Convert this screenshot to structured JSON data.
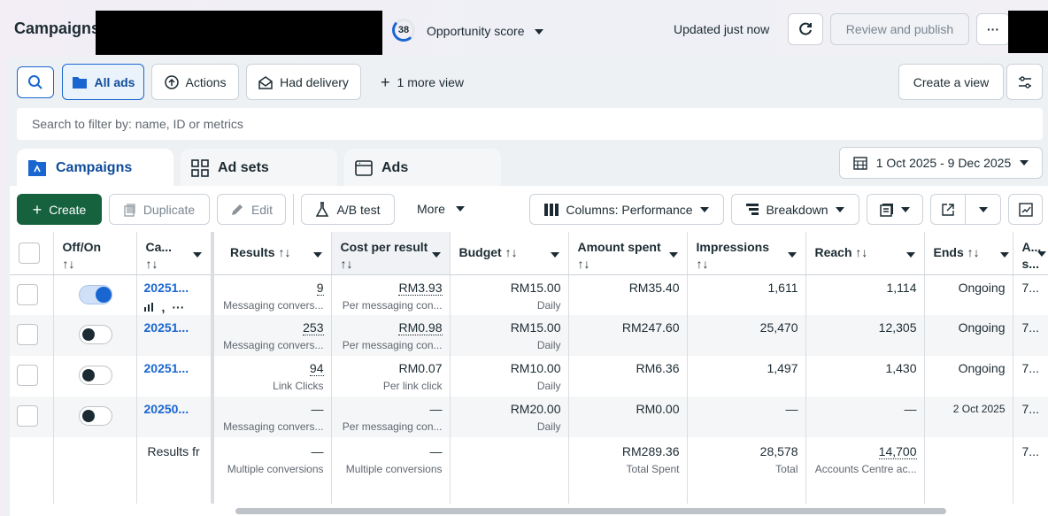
{
  "header": {
    "title": "Campaigns",
    "score": "38",
    "opportunity_label": "Opportunity score",
    "updated": "Updated just now",
    "review_publish": "Review and publish",
    "more": "···"
  },
  "toolbar": {
    "all_ads": "All ads",
    "actions": "Actions",
    "had_delivery": "Had delivery",
    "more_view": "1 more view",
    "create_view": "Create a view"
  },
  "search": {
    "placeholder": "Search to filter by: name, ID or metrics"
  },
  "tabs": [
    {
      "label": "Campaigns"
    },
    {
      "label": "Ad sets"
    },
    {
      "label": "Ads"
    }
  ],
  "date_range": "1 Oct 2025 - 9 Dec 2025",
  "actions_bar": {
    "create": "Create",
    "duplicate": "Duplicate",
    "edit": "Edit",
    "ab_test": "A/B test",
    "more": "More",
    "columns": "Columns: Performance",
    "breakdown": "Breakdown"
  },
  "table": {
    "headers": {
      "offon": "Off/On",
      "campaign": "Ca...",
      "results": "Results",
      "cost": "Cost per result",
      "budget": "Budget",
      "spent": "Amount spent",
      "impressions": "Impressions",
      "reach": "Reach",
      "ends": "Ends",
      "attribution": "A... s..."
    },
    "sort_glyph": "↑↓",
    "rows": [
      {
        "name": "20251...",
        "results": "9",
        "results_sub": "Messaging convers...",
        "cost": "RM3.93",
        "cost_sub": "Per messaging con...",
        "budget": "RM15.00",
        "budget_sub": "Daily",
        "spent": "RM35.40",
        "impressions": "1,611",
        "reach": "1,114",
        "ends": "Ongoing",
        "attr": "7..."
      },
      {
        "name": "20251...",
        "results": "253",
        "results_sub": "Messaging convers...",
        "cost": "RM0.98",
        "cost_sub": "Per messaging con...",
        "budget": "RM15.00",
        "budget_sub": "Daily",
        "spent": "RM247.60",
        "impressions": "25,470",
        "reach": "12,305",
        "ends": "Ongoing",
        "attr": "7..."
      },
      {
        "name": "20251...",
        "results": "94",
        "results_sub": "Link Clicks",
        "cost": "RM0.07",
        "cost_sub": "Per link click",
        "budget": "RM10.00",
        "budget_sub": "Daily",
        "spent": "RM6.36",
        "impressions": "1,497",
        "reach": "1,430",
        "ends": "Ongoing",
        "attr": "7..."
      },
      {
        "name": "20250...",
        "results": "—",
        "results_sub": "Messaging convers...",
        "cost": "—",
        "cost_sub": "Per messaging con...",
        "budget": "RM20.00",
        "budget_sub": "Daily",
        "spent": "RM0.00",
        "impressions": "—",
        "reach": "—",
        "ends": "2 Oct 2025",
        "attr": "7..."
      }
    ],
    "totals": {
      "label": "Results fr",
      "results": "—",
      "results_sub": "Multiple conversions",
      "cost": "—",
      "cost_sub": "Multiple conversions",
      "spent": "RM289.36",
      "spent_sub": "Total Spent",
      "impressions": "28,578",
      "impressions_sub": "Total",
      "reach": "14,700",
      "reach_sub": "Accounts Centre ac...",
      "attr": "7..."
    }
  }
}
